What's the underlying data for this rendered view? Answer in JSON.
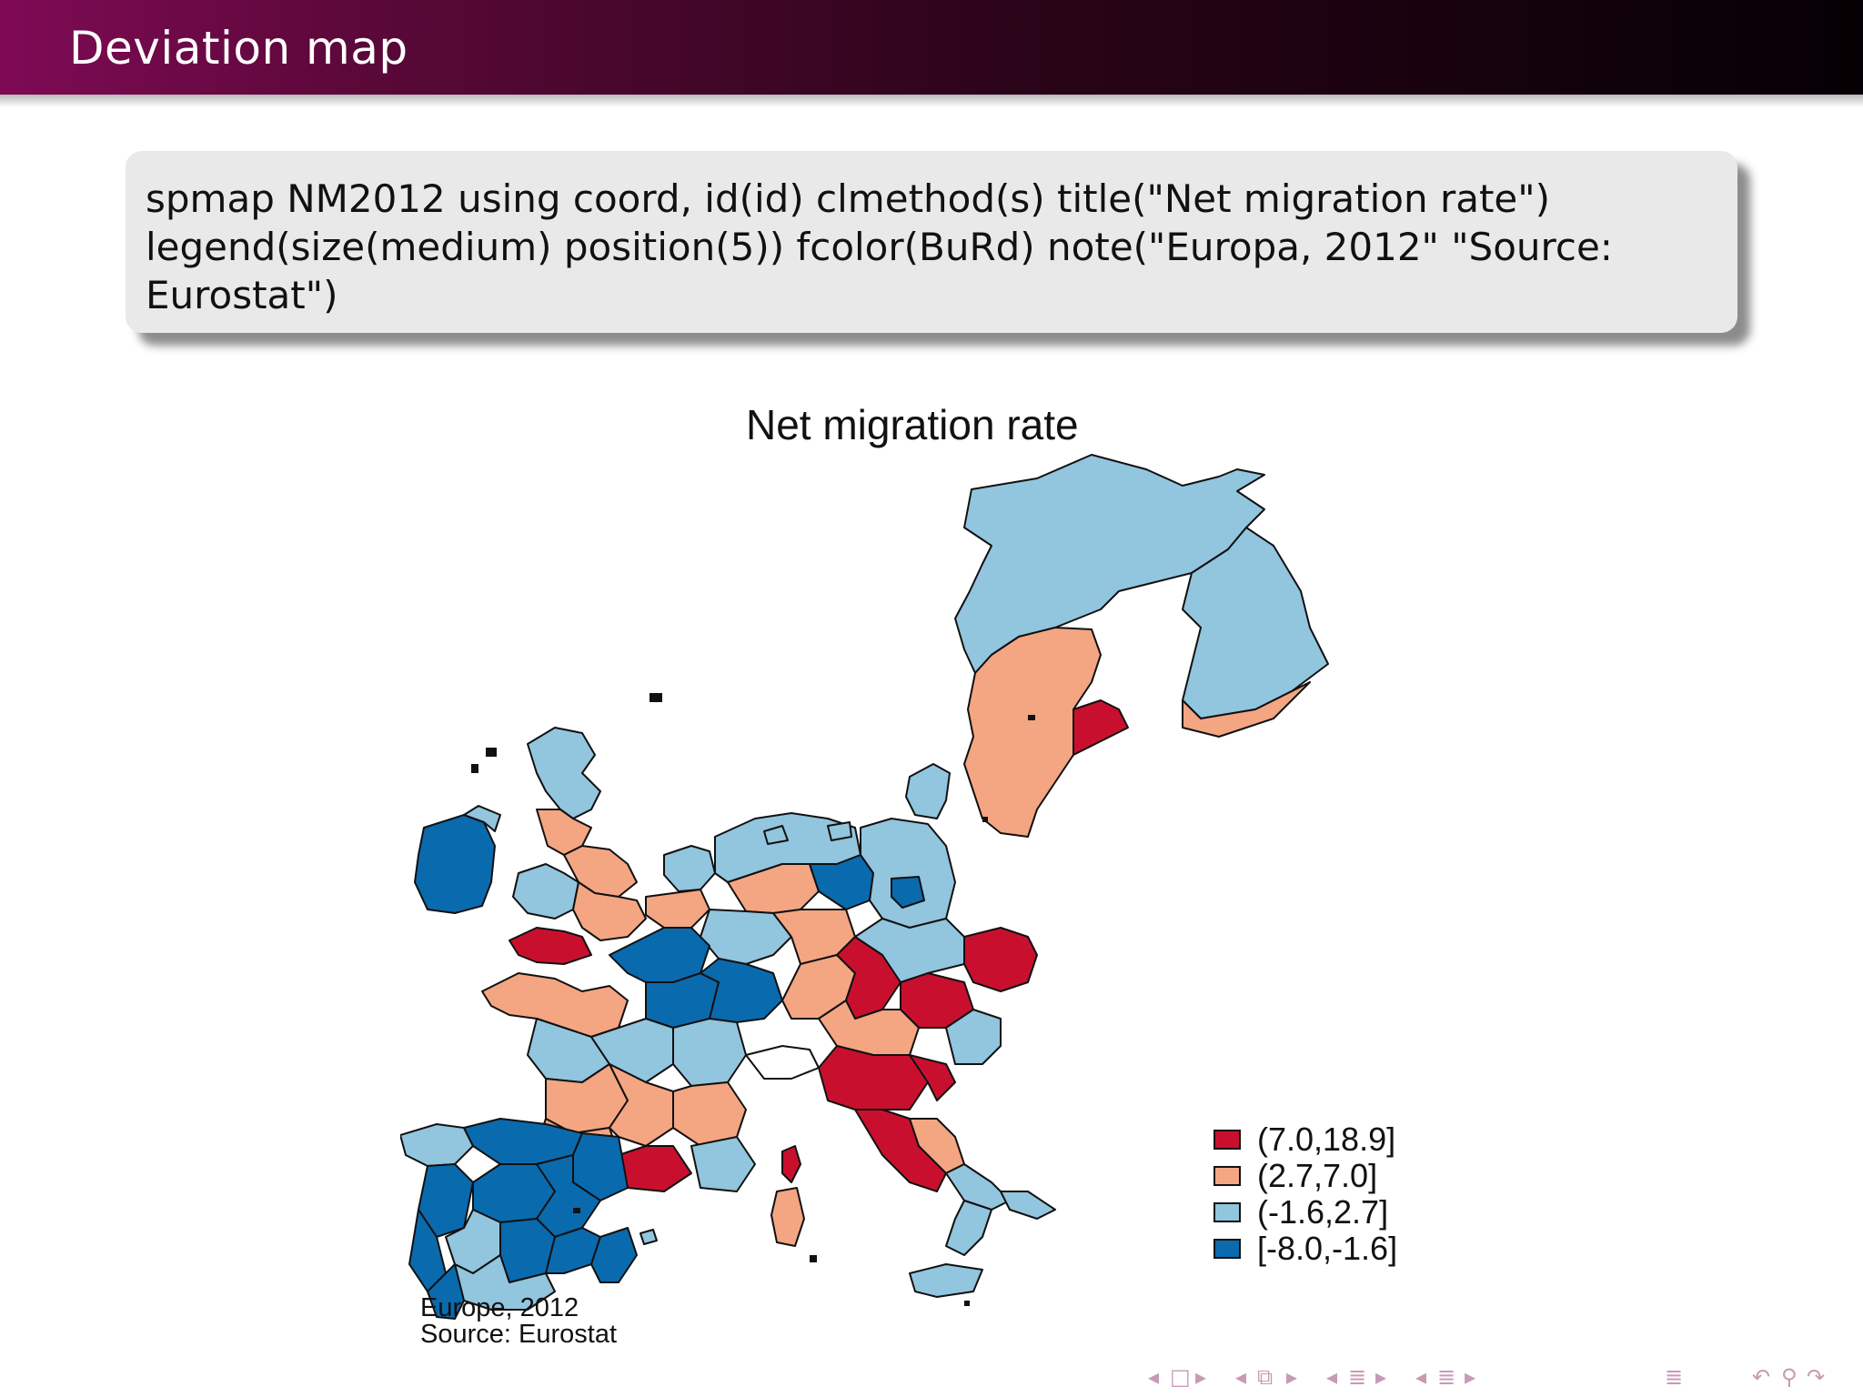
{
  "frame_title": "Deviation map",
  "code": {
    "lines": [
      "spmap NM2012 using coord, id(id) clmethod(s) title(\"Net migration rate\")",
      "legend(size(medium) position(5)) fcolor(BuRd) note(\"Europa, 2012\" \"Source:",
      "Eurostat\")"
    ]
  },
  "map": {
    "title": "Net migration rate",
    "palette": {
      "dark_red": "#c8102e",
      "light_red": "#f4a582",
      "light_blue": "#92c5de",
      "dark_blue": "#0a6aae",
      "border": "#111111"
    },
    "legend": [
      {
        "label": "(7.0,18.9]",
        "color": "#c8102e"
      },
      {
        "label": "(2.7,7.0]",
        "color": "#f4a582"
      },
      {
        "label": "(-1.6,2.7]",
        "color": "#92c5de"
      },
      {
        "label": "[-8.0,-1.6]",
        "color": "#0a6aae"
      }
    ],
    "note_lines": [
      "Europe, 2012",
      "Source: Eurostat"
    ]
  },
  "nav": {
    "icons": [
      "arrow-left-icon",
      "frame-icon",
      "arrow-right-icon",
      "arrow-left-icon",
      "subsection-icon",
      "arrow-right-icon",
      "arrow-left-icon",
      "section-icon",
      "arrow-right-icon",
      "arrow-left-icon",
      "section-icon",
      "arrow-right-icon",
      "outline-icon",
      "undo-icon",
      "search-icon",
      "redo-icon"
    ]
  }
}
